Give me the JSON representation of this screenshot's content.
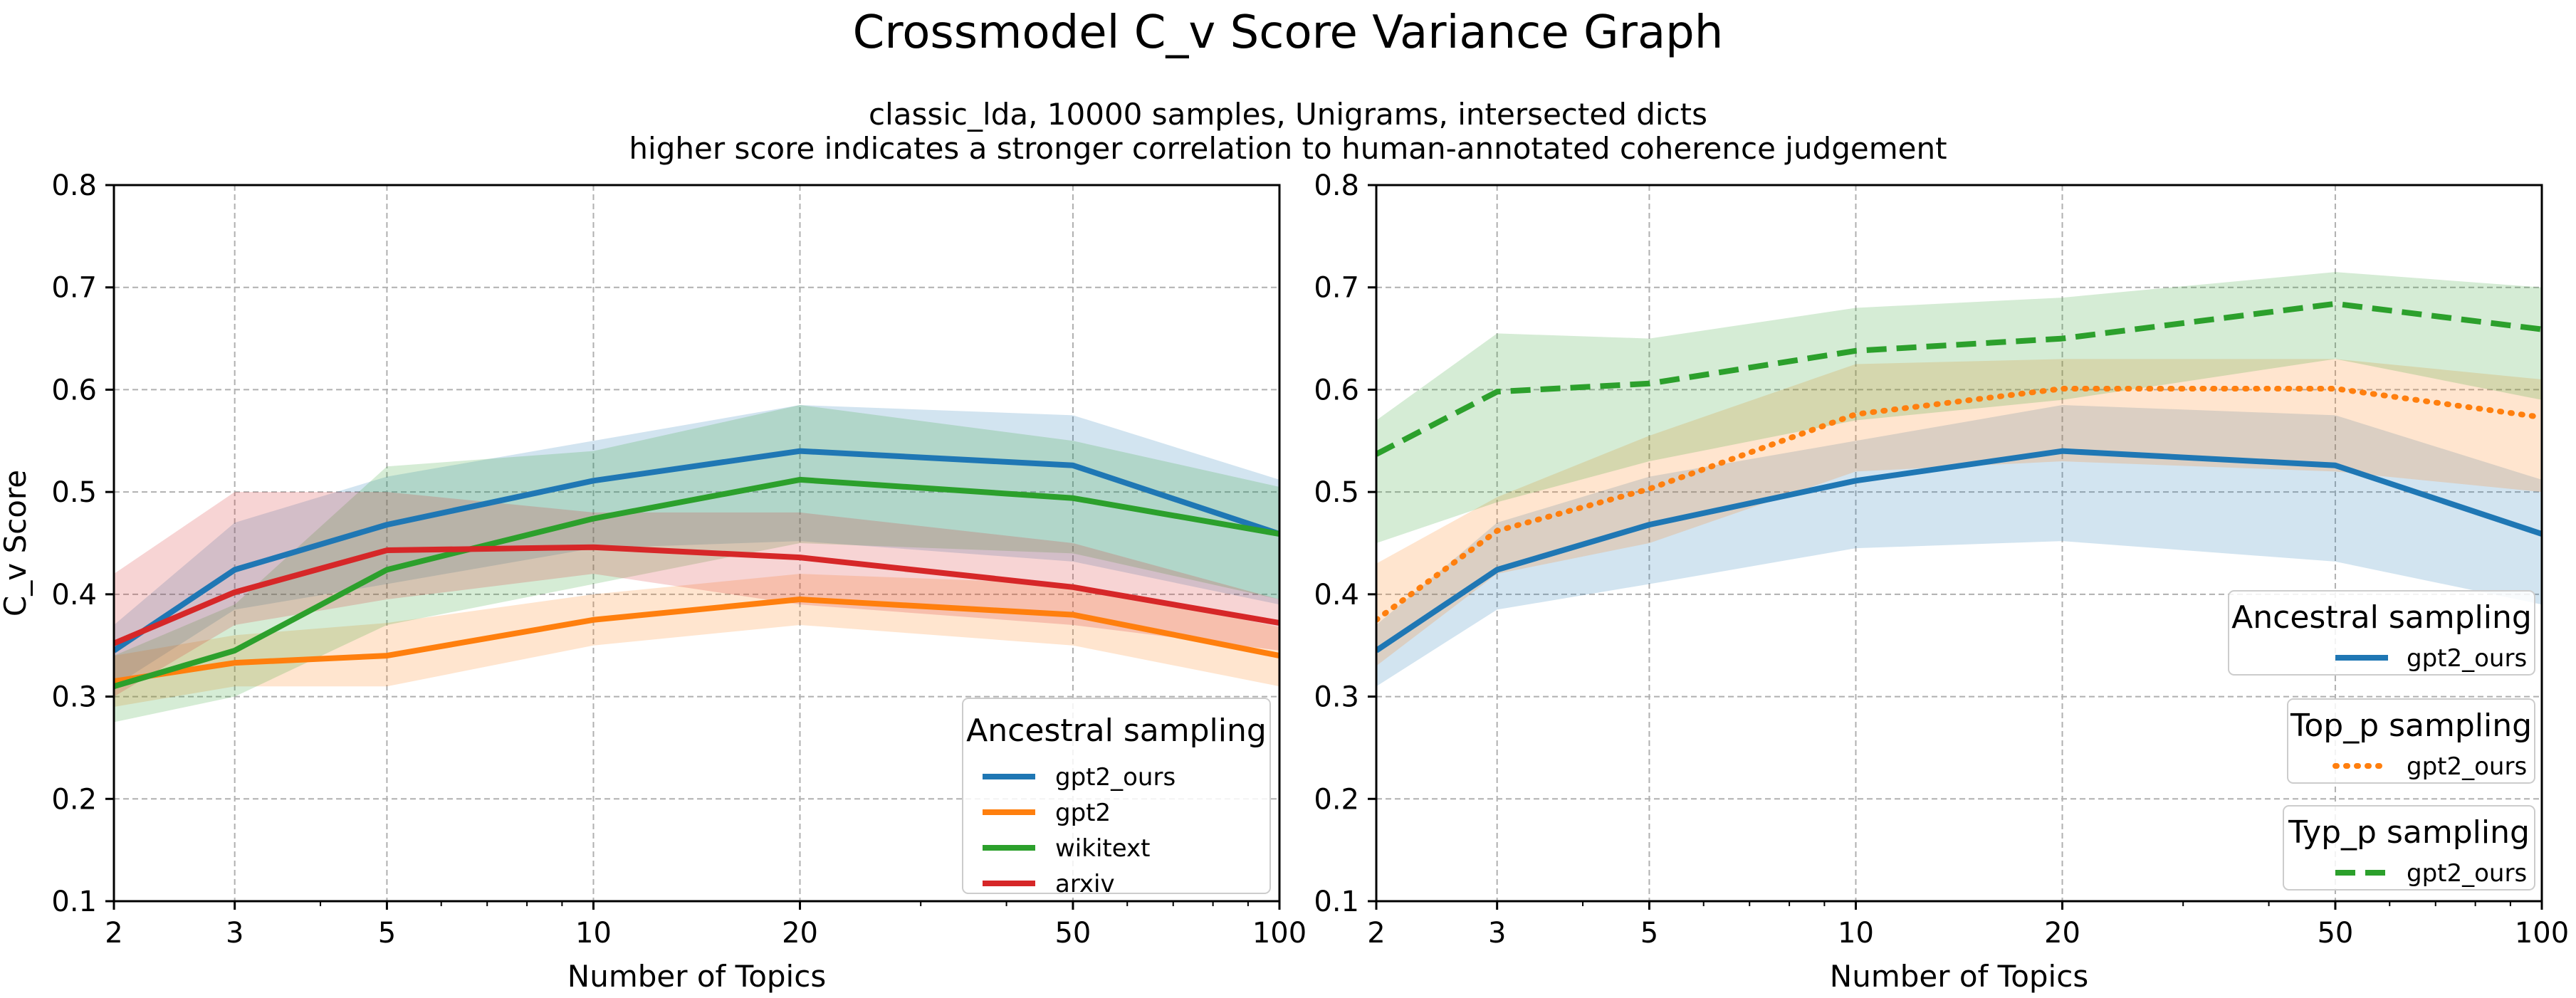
{
  "figure": {
    "title": "Crossmodel C_v Score Variance Graph",
    "subtitle_line1": "classic_lda, 10000 samples, Unigrams, intersected dicts",
    "subtitle_line2": "higher score indicates a stronger correlation to human-annotated coherence judgement"
  },
  "colors": {
    "gpt2_ours": "#1f77b4",
    "gpt2": "#ff7f0e",
    "wikitext": "#2ca02c",
    "arxiv": "#d62728"
  },
  "chart_data": [
    {
      "type": "line",
      "panel": "left",
      "x_scale": "log",
      "x": [
        2,
        3,
        5,
        10,
        20,
        50,
        100
      ],
      "x_ticks": [
        "2",
        "3",
        "5",
        "10",
        "20",
        "50",
        "100"
      ],
      "y_ticks": [
        "0.1",
        "0.2",
        "0.3",
        "0.4",
        "0.5",
        "0.6",
        "0.7",
        "0.8"
      ],
      "xlabel": "Number of Topics",
      "ylabel": "C_v Score",
      "xlim": [
        2,
        100
      ],
      "ylim": [
        0.1,
        0.8
      ],
      "grid": true,
      "legend": {
        "title": "Ancestral sampling",
        "placement": "lower-right",
        "entries": [
          "gpt2_ours",
          "gpt2",
          "wikitext",
          "arxiv"
        ]
      },
      "series": [
        {
          "name": "gpt2_ours",
          "color": "#1f77b4",
          "style": "solid",
          "values": [
            0.345,
            0.424,
            0.468,
            0.511,
            0.54,
            0.526,
            0.459
          ],
          "lower": [
            0.31,
            0.385,
            0.41,
            0.445,
            0.452,
            0.432,
            0.39
          ],
          "upper": [
            0.37,
            0.47,
            0.515,
            0.55,
            0.585,
            0.575,
            0.512
          ]
        },
        {
          "name": "gpt2",
          "color": "#ff7f0e",
          "style": "solid",
          "values": [
            0.315,
            0.333,
            0.34,
            0.375,
            0.395,
            0.38,
            0.34
          ],
          "lower": [
            0.29,
            0.31,
            0.31,
            0.35,
            0.37,
            0.35,
            0.31
          ],
          "upper": [
            0.34,
            0.36,
            0.372,
            0.4,
            0.42,
            0.41,
            0.368
          ]
        },
        {
          "name": "wikitext",
          "color": "#2ca02c",
          "style": "solid",
          "values": [
            0.31,
            0.345,
            0.424,
            0.474,
            0.512,
            0.494,
            0.459
          ],
          "lower": [
            0.275,
            0.3,
            0.37,
            0.41,
            0.45,
            0.44,
            0.395
          ],
          "upper": [
            0.34,
            0.39,
            0.525,
            0.54,
            0.585,
            0.55,
            0.505
          ]
        },
        {
          "name": "arxiv",
          "color": "#d62728",
          "style": "solid",
          "values": [
            0.352,
            0.402,
            0.443,
            0.446,
            0.436,
            0.407,
            0.372
          ],
          "lower": [
            0.3,
            0.37,
            0.395,
            0.42,
            0.39,
            0.37,
            0.345
          ],
          "upper": [
            0.42,
            0.5,
            0.5,
            0.48,
            0.48,
            0.45,
            0.395
          ]
        }
      ]
    },
    {
      "type": "line",
      "panel": "right",
      "x_scale": "log",
      "x": [
        2,
        3,
        5,
        10,
        20,
        50,
        100
      ],
      "x_ticks": [
        "2",
        "3",
        "5",
        "10",
        "20",
        "50",
        "100"
      ],
      "y_ticks": [
        "0.1",
        "0.2",
        "0.3",
        "0.4",
        "0.5",
        "0.6",
        "0.7",
        "0.8"
      ],
      "xlabel": "Number of Topics",
      "ylabel": "",
      "xlim": [
        2,
        100
      ],
      "ylim": [
        0.1,
        0.8
      ],
      "grid": true,
      "legends": [
        {
          "title": "Ancestral sampling",
          "placement": "right",
          "entries": [
            "gpt2_ours"
          ],
          "style": "solid",
          "color": "#1f77b4"
        },
        {
          "title": "Top_p sampling",
          "placement": "right",
          "entries": [
            "gpt2_ours"
          ],
          "style": "dotted",
          "color": "#ff7f0e"
        },
        {
          "title": "Typ_p sampling",
          "placement": "lower-right",
          "entries": [
            "gpt2_ours"
          ],
          "style": "dashed",
          "color": "#2ca02c"
        }
      ],
      "series": [
        {
          "name": "gpt2_ours",
          "sampling": "Ancestral sampling",
          "color": "#1f77b4",
          "style": "solid",
          "values": [
            0.345,
            0.424,
            0.468,
            0.511,
            0.54,
            0.526,
            0.459
          ],
          "lower": [
            0.31,
            0.385,
            0.41,
            0.445,
            0.452,
            0.432,
            0.39
          ],
          "upper": [
            0.37,
            0.47,
            0.515,
            0.55,
            0.585,
            0.575,
            0.512
          ]
        },
        {
          "name": "gpt2_ours",
          "sampling": "Top_p sampling",
          "color": "#ff7f0e",
          "style": "dotted",
          "values": [
            0.375,
            0.462,
            0.503,
            0.576,
            0.601,
            0.601,
            0.573
          ],
          "lower": [
            0.33,
            0.42,
            0.45,
            0.52,
            0.53,
            0.52,
            0.5
          ],
          "upper": [
            0.43,
            0.495,
            0.555,
            0.625,
            0.63,
            0.63,
            0.61
          ]
        },
        {
          "name": "gpt2_ours",
          "sampling": "Typ_p sampling",
          "color": "#2ca02c",
          "style": "dashed",
          "values": [
            0.537,
            0.598,
            0.606,
            0.638,
            0.65,
            0.684,
            0.659
          ],
          "lower": [
            0.45,
            0.49,
            0.53,
            0.57,
            0.59,
            0.63,
            0.59
          ],
          "upper": [
            0.57,
            0.655,
            0.65,
            0.68,
            0.69,
            0.715,
            0.7
          ]
        }
      ]
    }
  ]
}
